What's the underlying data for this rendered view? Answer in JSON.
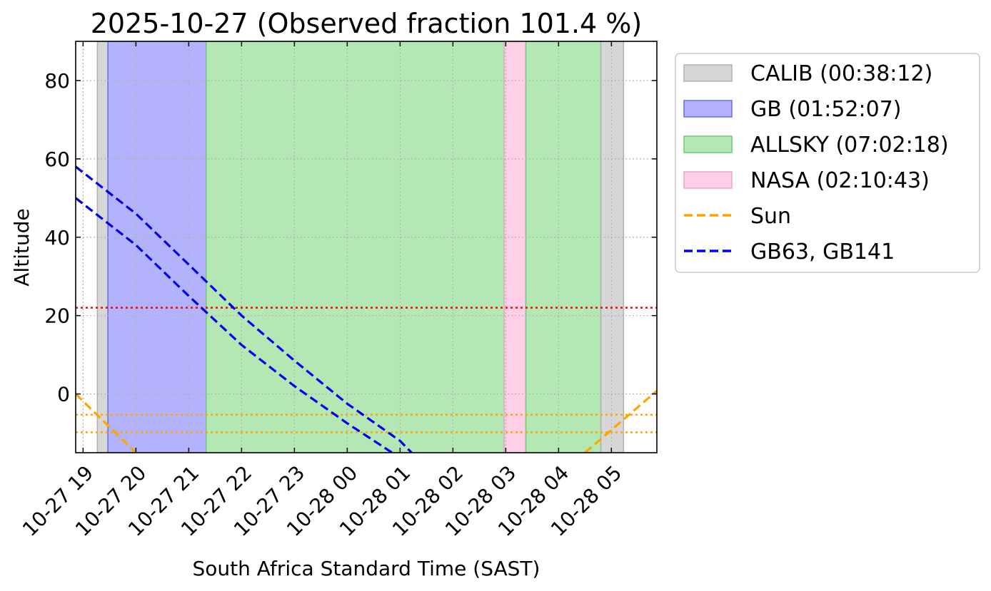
{
  "chart_data": {
    "type": "line",
    "title": "2025-10-27 (Observed fraction 101.4 %)",
    "xlabel": "South Africa Standard Time (SAST)",
    "ylabel": "Altitude",
    "x_unit": "hours since 2025-10-27 00:00 SAST",
    "xlim": [
      18.86,
      29.86
    ],
    "ylim": [
      -15,
      90
    ],
    "x_ticks": [
      {
        "x": 19,
        "label": "10-27 19"
      },
      {
        "x": 20,
        "label": "10-27 20"
      },
      {
        "x": 21,
        "label": "10-27 21"
      },
      {
        "x": 22,
        "label": "10-27 22"
      },
      {
        "x": 23,
        "label": "10-27 23"
      },
      {
        "x": 24,
        "label": "10-28 00"
      },
      {
        "x": 25,
        "label": "10-28 01"
      },
      {
        "x": 26,
        "label": "10-28 02"
      },
      {
        "x": 27,
        "label": "10-28 03"
      },
      {
        "x": 28,
        "label": "10-28 04"
      },
      {
        "x": 29,
        "label": "10-28 05"
      }
    ],
    "y_ticks": [
      0,
      20,
      40,
      60,
      80
    ],
    "grid": true,
    "legend_position": "outside-right",
    "bands": [
      {
        "label": "CALIB (00:38:12)",
        "start": 19.27,
        "end": 19.47,
        "color": "#d6d6d6",
        "edge": "#b0b0b0"
      },
      {
        "label": "GB (01:52:07)",
        "start": 19.47,
        "end": 21.33,
        "color": "#b2b2fd",
        "edge": "#6a6ae8"
      },
      {
        "label": "ALLSKY (07:02:18)",
        "start": 21.33,
        "end": 26.97,
        "color": "#b3e8b4",
        "edge": "#74c777"
      },
      {
        "label": "NASA (02:10:43)",
        "start": 26.97,
        "end": 27.38,
        "color": "#fdd0e7",
        "edge": "#e8a8c8"
      },
      {
        "label": "ALLSKY (07:02:18)",
        "start": 27.38,
        "end": 28.8,
        "color": "#b3e8b4",
        "edge": "#74c777"
      },
      {
        "label": "CALIB (00:38:12)",
        "start": 28.8,
        "end": 29.23,
        "color": "#d6d6d6",
        "edge": "#b0b0b0"
      }
    ],
    "legend": [
      {
        "label": "CALIB (00:38:12)",
        "kind": "patch",
        "color": "#d6d6d6",
        "edge": "#b0b0b0"
      },
      {
        "label": "GB (01:52:07)",
        "kind": "patch",
        "color": "#b2b2fd",
        "edge": "#6a6ae8"
      },
      {
        "label": "ALLSKY (07:02:18)",
        "kind": "patch",
        "color": "#b3e8b4",
        "edge": "#74c777"
      },
      {
        "label": "NASA (02:10:43)",
        "kind": "patch",
        "color": "#fdd0e7",
        "edge": "#e8a8c8"
      },
      {
        "label": "Sun",
        "kind": "line",
        "color": "#ffa500"
      },
      {
        "label": "GB63, GB141",
        "kind": "line",
        "color": "#0000ee"
      }
    ],
    "series": [
      {
        "name": "Sun",
        "color": "#ffa500",
        "style": "dashed",
        "x": [
          18.86,
          20.0
        ],
        "y": [
          0.0,
          -15.0
        ]
      },
      {
        "name": "Sun",
        "color": "#ffa500",
        "style": "dashed",
        "x": [
          28.5,
          29.86
        ],
        "y": [
          -15.0,
          0.8
        ]
      },
      {
        "name": "GB63, GB141",
        "color": "#0000ee",
        "style": "dashed",
        "x": [
          18.86,
          20.0,
          21.0,
          22.0,
          23.0,
          24.0,
          25.0,
          25.22
        ],
        "y": [
          58.0,
          46.0,
          33.0,
          20.0,
          8.5,
          -2.5,
          -12.0,
          -15.0
        ]
      },
      {
        "name": "GB63, GB141",
        "color": "#0000ee",
        "style": "dashed",
        "x": [
          18.86,
          20.0,
          21.0,
          22.0,
          23.0,
          24.0,
          24.85
        ],
        "y": [
          50.0,
          38.0,
          25.0,
          12.5,
          2.0,
          -7.5,
          -15.0
        ]
      }
    ],
    "hlines": [
      {
        "y": 22,
        "color": "#ff0000",
        "style": "dotted"
      },
      {
        "y": -5.3,
        "color": "#ffa500",
        "style": "dotted"
      },
      {
        "y": -9.8,
        "color": "#ffa500",
        "style": "dotted"
      }
    ]
  }
}
